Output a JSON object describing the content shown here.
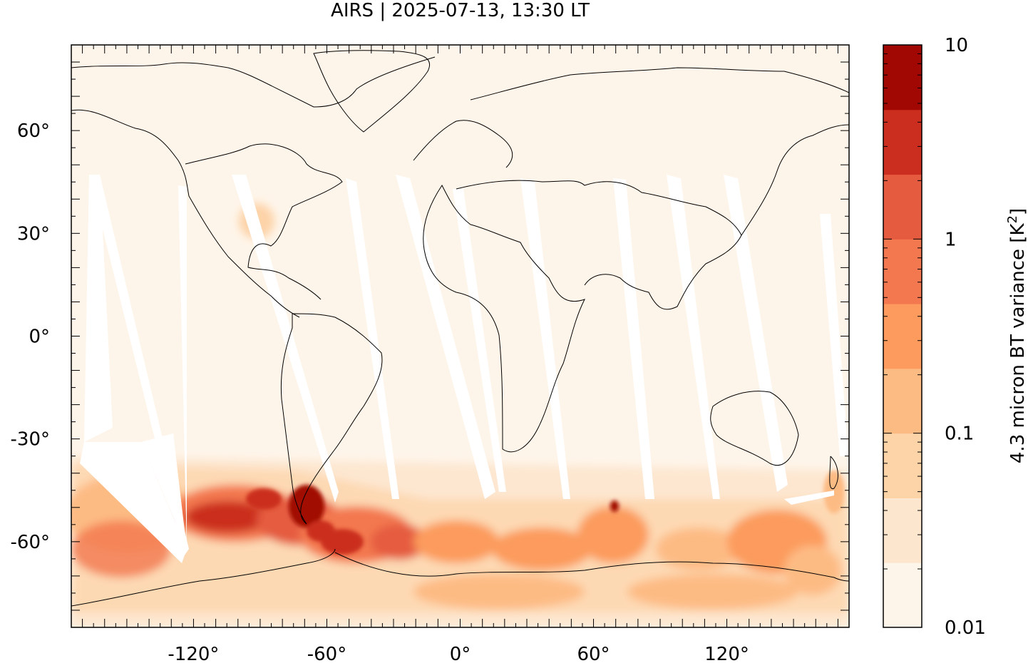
{
  "title": "AIRS | 2025-07-13, 13:30 LT",
  "map": {
    "projection": "equirectangular",
    "lon_range": [
      -175,
      175
    ],
    "lat_range": [
      -85,
      85
    ],
    "y_ticks": [
      {
        "value": 60,
        "label": "60°"
      },
      {
        "value": 30,
        "label": "30°"
      },
      {
        "value": 0,
        "label": "0°"
      },
      {
        "value": -30,
        "label": "-30°"
      },
      {
        "value": -60,
        "label": "-60°"
      }
    ],
    "x_ticks": [
      {
        "value": -120,
        "label": "-120°"
      },
      {
        "value": -60,
        "label": "-60°"
      },
      {
        "value": 0,
        "label": "0°"
      },
      {
        "value": 60,
        "label": "60°"
      },
      {
        "value": 120,
        "label": "120°"
      }
    ],
    "background_color": "#fef5ea",
    "gap_color": "#ffffff",
    "coastline_color": "#000000"
  },
  "colorbar": {
    "label_main": "4.3 micron BT variance [K",
    "label_sup": "2",
    "label_end": "]",
    "scale": "log",
    "range": [
      0.01,
      10
    ],
    "ticks": [
      {
        "value": 10,
        "label": "10"
      },
      {
        "value": 1,
        "label": "1"
      },
      {
        "value": 0.1,
        "label": "0.1"
      },
      {
        "value": 0.01,
        "label": "0.01"
      }
    ],
    "levels": [
      "#fef5ea",
      "#fde6ce",
      "#fdd3a8",
      "#fdbb84",
      "#fc9b5d",
      "#f3784f",
      "#e55b3f",
      "#cb2e1f",
      "#a10703"
    ]
  }
}
